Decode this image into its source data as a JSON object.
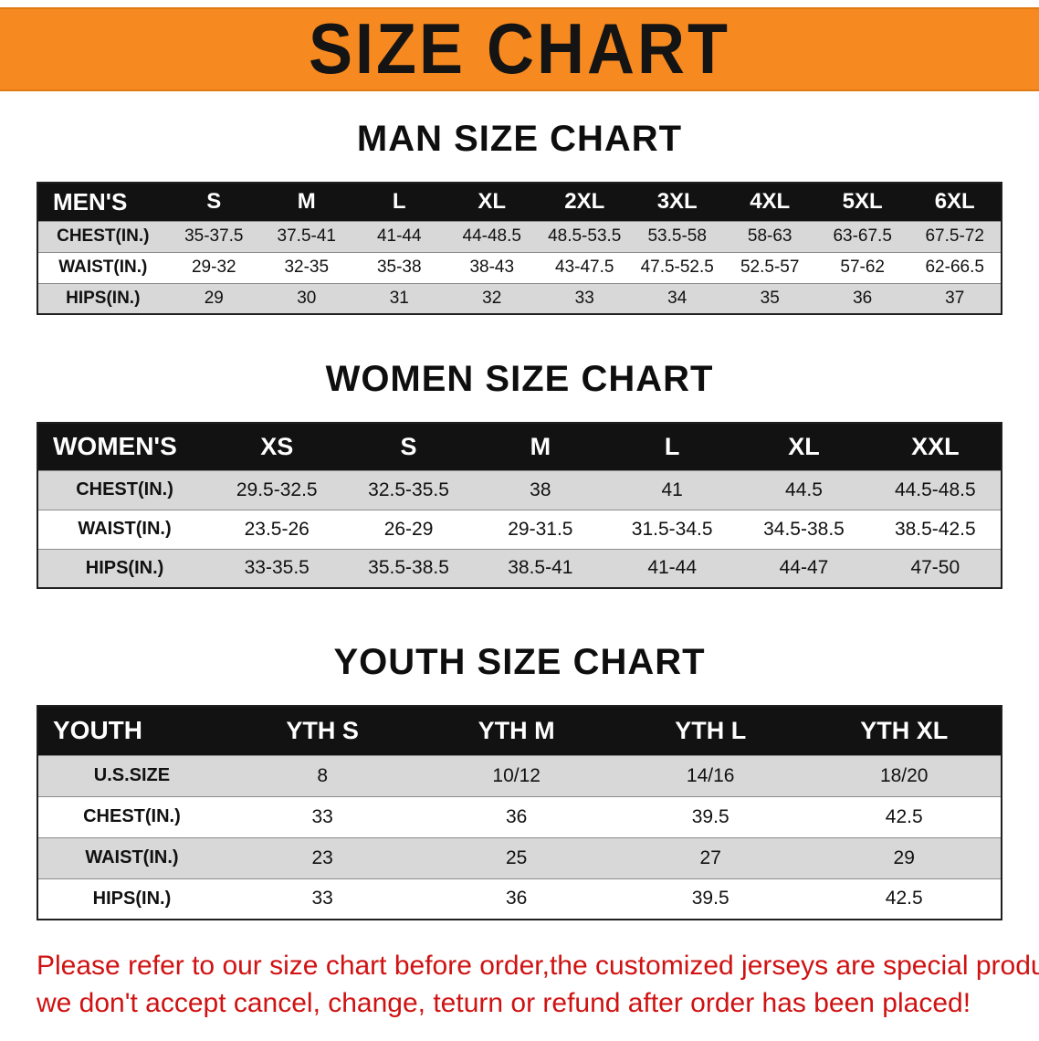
{
  "banner": {
    "title": "SIZE CHART"
  },
  "sections": [
    {
      "id": "men",
      "heading": "MAN SIZE CHART",
      "table": {
        "header_label": "MEN'S",
        "columns": [
          "S",
          "M",
          "L",
          "XL",
          "2XL",
          "3XL",
          "4XL",
          "5XL",
          "6XL"
        ],
        "rows": [
          {
            "label": "CHEST(IN.)",
            "values": [
              "35-37.5",
              "37.5-41",
              "41-44",
              "44-48.5",
              "48.5-53.5",
              "53.5-58",
              "58-63",
              "63-67.5",
              "67.5-72"
            ]
          },
          {
            "label": "WAIST(IN.)",
            "values": [
              "29-32",
              "32-35",
              "35-38",
              "38-43",
              "43-47.5",
              "47.5-52.5",
              "52.5-57",
              "57-62",
              "62-66.5"
            ]
          },
          {
            "label": "HIPS(IN.)",
            "values": [
              "29",
              "30",
              "31",
              "32",
              "33",
              "34",
              "35",
              "36",
              "37"
            ]
          }
        ]
      }
    },
    {
      "id": "women",
      "heading": "WOMEN SIZE CHART",
      "table": {
        "header_label": "WOMEN'S",
        "columns": [
          "XS",
          "S",
          "M",
          "L",
          "XL",
          "XXL"
        ],
        "rows": [
          {
            "label": "CHEST(IN.)",
            "values": [
              "29.5-32.5",
              "32.5-35.5",
              "38",
              "41",
              "44.5",
              "44.5-48.5"
            ]
          },
          {
            "label": "WAIST(IN.)",
            "values": [
              "23.5-26",
              "26-29",
              "29-31.5",
              "31.5-34.5",
              "34.5-38.5",
              "38.5-42.5"
            ]
          },
          {
            "label": "HIPS(IN.)",
            "values": [
              "33-35.5",
              "35.5-38.5",
              "38.5-41",
              "41-44",
              "44-47",
              "47-50"
            ]
          }
        ]
      }
    },
    {
      "id": "youth",
      "heading": "YOUTH SIZE CHART",
      "table": {
        "header_label": "YOUTH",
        "columns": [
          "YTH S",
          "YTH M",
          "YTH L",
          "YTH XL"
        ],
        "rows": [
          {
            "label": "U.S.SIZE",
            "values": [
              "8",
              "10/12",
              "14/16",
              "18/20"
            ]
          },
          {
            "label": "CHEST(IN.)",
            "values": [
              "33",
              "36",
              "39.5",
              "42.5"
            ]
          },
          {
            "label": "WAIST(IN.)",
            "values": [
              "23",
              "25",
              "27",
              "29"
            ]
          },
          {
            "label": "HIPS(IN.)",
            "values": [
              "33",
              "36",
              "39.5",
              "42.5"
            ]
          }
        ]
      }
    }
  ],
  "footer": {
    "line1": "Please refer to our size chart before order,the customized jerseys are special products,",
    "line2": "we don't accept cancel, change, teturn or refund after order has been placed!"
  },
  "colors": {
    "banner_orange": "#f6891f",
    "header_black": "#121212",
    "stripe_gray": "#d8d8d8",
    "notice_red": "#d01212"
  }
}
